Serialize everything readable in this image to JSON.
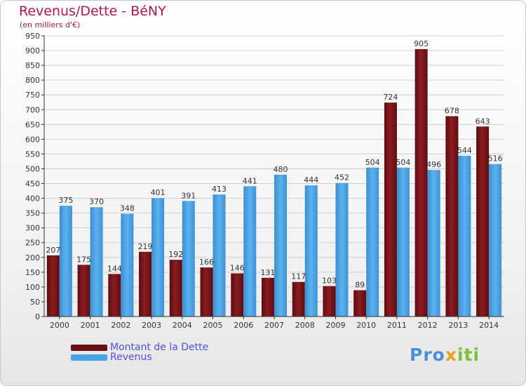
{
  "chart_data": {
    "type": "bar",
    "title": "Revenus/Dette - BéNY",
    "subtitle": "(en milliers d'€)",
    "categories": [
      "2000",
      "2001",
      "2002",
      "2003",
      "2004",
      "2005",
      "2006",
      "2007",
      "2008",
      "2009",
      "2010",
      "2011",
      "2012",
      "2013",
      "2014"
    ],
    "series": [
      {
        "name": "Montant de la Dette",
        "color": "#7a1418",
        "values": [
          207,
          175,
          144,
          219,
          192,
          166,
          146,
          131,
          117,
          103,
          89,
          724,
          905,
          678,
          643
        ]
      },
      {
        "name": "Revenus",
        "color": "#4aa3e6",
        "values": [
          375,
          370,
          348,
          401,
          391,
          413,
          441,
          480,
          444,
          452,
          504,
          504,
          496,
          544,
          516
        ]
      }
    ],
    "ylim": [
      0,
      950
    ],
    "yticks": [
      0,
      50,
      100,
      150,
      200,
      250,
      300,
      350,
      400,
      450,
      500,
      550,
      600,
      650,
      700,
      750,
      800,
      850,
      900,
      950
    ],
    "grid": true,
    "legend": "bottom-left"
  },
  "branding": {
    "logo_text": "Proxiti",
    "logo_colors": [
      "#4a90d9",
      "#e8a020",
      "#7cbf3c"
    ]
  }
}
